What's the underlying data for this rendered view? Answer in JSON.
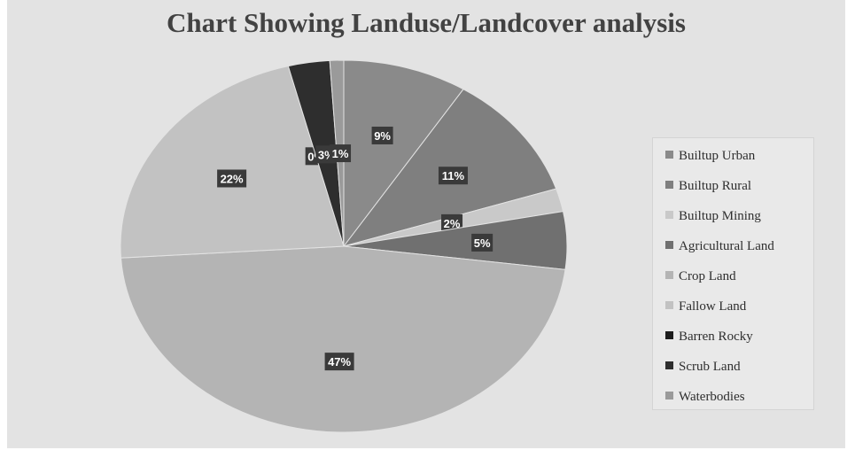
{
  "chart_data": {
    "type": "pie",
    "title": "Chart Showing Landuse/Landcover analysis",
    "legend_position": "right",
    "categories": [
      "Builtup Urban",
      "Builtup Rural",
      "Builtup Mining",
      "Agricultural Land",
      "Crop Land",
      "Fallow Land",
      "Barren Rocky",
      "Scrub Land",
      "Waterbodies"
    ],
    "values": [
      9,
      11,
      2,
      5,
      47,
      22,
      0,
      3,
      1
    ],
    "data_labels": [
      "9%",
      "11%",
      "2%",
      "5%",
      "47%",
      "22%",
      "0%",
      "3%",
      "1%"
    ],
    "colors": [
      "#8a8a8a",
      "#7f7f7f",
      "#c9c9c9",
      "#707070",
      "#b4b4b4",
      "#c2c2c2",
      "#1c1c1c",
      "#2e2e2e",
      "#9a9a9a"
    ]
  }
}
